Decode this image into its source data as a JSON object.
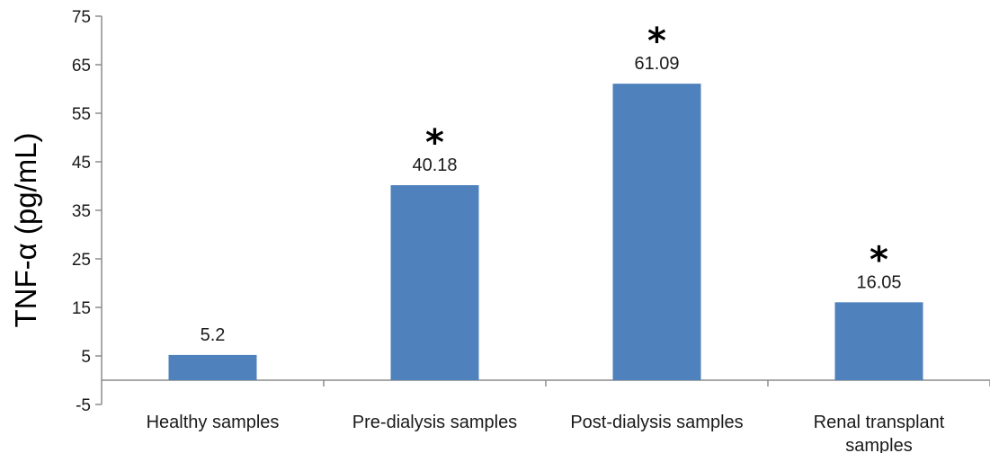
{
  "chart_data": {
    "type": "bar",
    "title": "",
    "xlabel": "",
    "ylabel": "TNF-α (pg/mL)",
    "ylim": [
      -5,
      75
    ],
    "yticks": [
      -5,
      5,
      15,
      25,
      35,
      45,
      55,
      65,
      75
    ],
    "grid": false,
    "categories": [
      [
        "Healthy samples"
      ],
      [
        "Pre-dialysis samples"
      ],
      [
        "Post-dialysis samples"
      ],
      [
        "Renal transplant",
        "samples"
      ]
    ],
    "values": [
      5.2,
      40.18,
      61.09,
      16.05
    ],
    "data_labels": [
      "5.2",
      "40.18",
      "61.09",
      "16.05"
    ],
    "significance": [
      "",
      "*",
      "*",
      "*"
    ],
    "bar_color": "#4f81bd",
    "axis_color": "#8c8c8c"
  }
}
